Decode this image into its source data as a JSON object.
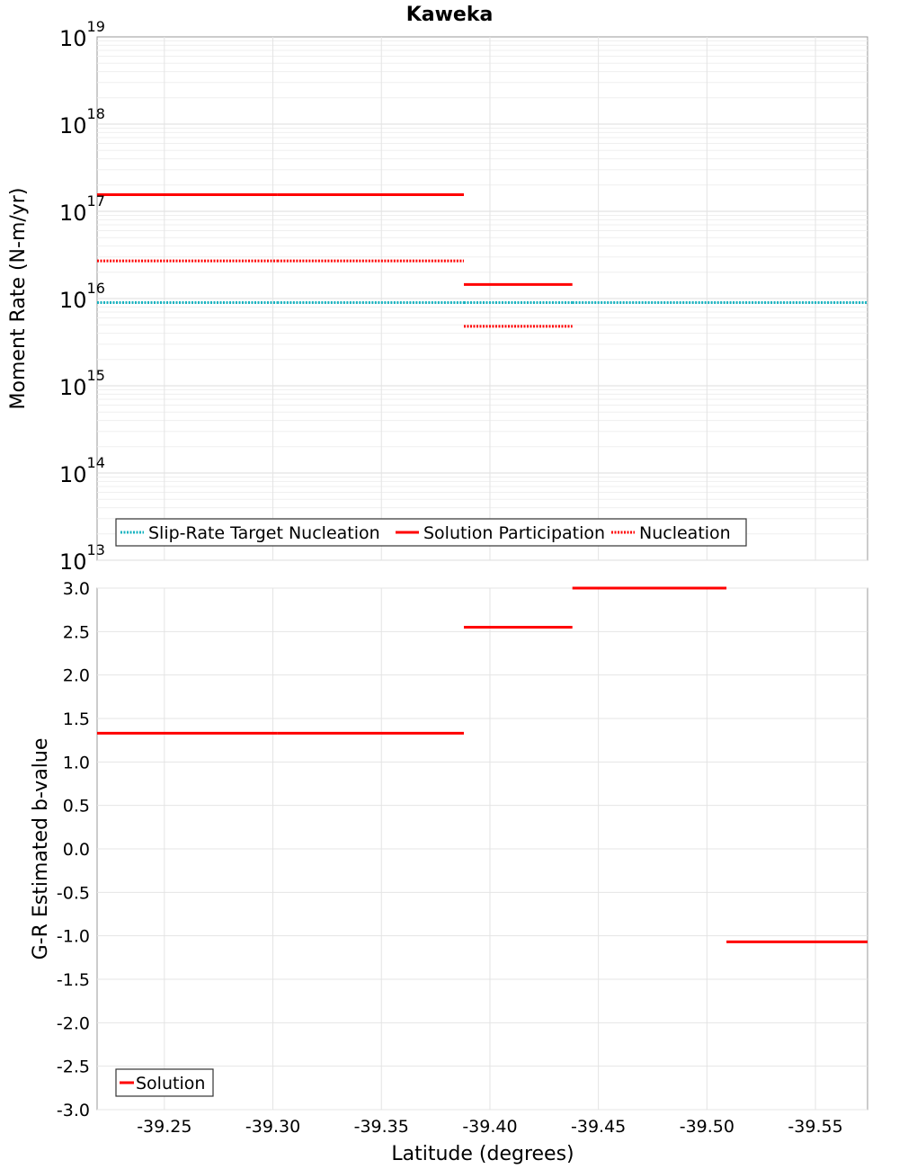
{
  "chart_data": [
    {
      "type": "line",
      "title": "Kaweka",
      "ylabel": "Moment Rate (N-m/yr)",
      "xlabel": "",
      "yscale": "log",
      "ylim": [
        10000000000000.0,
        1e+19
      ],
      "xlim": [
        -39.219,
        -39.574
      ],
      "y_ticks": [
        {
          "base": "10",
          "exp": "13",
          "value": 10000000000000.0
        },
        {
          "base": "10",
          "exp": "14",
          "value": 100000000000000.0
        },
        {
          "base": "10",
          "exp": "15",
          "value": 1000000000000000.0
        },
        {
          "base": "10",
          "exp": "16",
          "value": 1e+16
        },
        {
          "base": "10",
          "exp": "17",
          "value": 1e+17
        },
        {
          "base": "10",
          "exp": "18",
          "value": 1e+18
        },
        {
          "base": "10",
          "exp": "19",
          "value": 1e+19
        }
      ],
      "grid": true,
      "legend_position": "bottom-left",
      "series": [
        {
          "name": "Slip-Rate Target Nucleation",
          "style": "dotted",
          "color": "#17b3c0",
          "segments": [
            {
              "x0": -39.219,
              "x1": -39.302,
              "y": 9000000000000000.0
            },
            {
              "x0": -39.302,
              "x1": -39.388,
              "y": 9000000000000000.0
            },
            {
              "x0": -39.388,
              "x1": -39.438,
              "y": 9000000000000000.0
            },
            {
              "x0": -39.438,
              "x1": -39.509,
              "y": 9000000000000000.0
            },
            {
              "x0": -39.509,
              "x1": -39.574,
              "y": 9000000000000000.0
            }
          ]
        },
        {
          "name": "Solution Participation",
          "style": "solid",
          "color": "#ff0000",
          "segments": [
            {
              "x0": -39.219,
              "x1": -39.302,
              "y": 1.55e+17
            },
            {
              "x0": -39.302,
              "x1": -39.388,
              "y": 1.55e+17
            },
            {
              "x0": -39.388,
              "x1": -39.438,
              "y": 1.45e+16
            }
          ]
        },
        {
          "name": "Nucleation",
          "style": "dotted",
          "color": "#ff0000",
          "segments": [
            {
              "x0": -39.219,
              "x1": -39.302,
              "y": 2.7e+16
            },
            {
              "x0": -39.302,
              "x1": -39.388,
              "y": 2.7e+16
            },
            {
              "x0": -39.388,
              "x1": -39.438,
              "y": 4800000000000000.0
            }
          ]
        }
      ]
    },
    {
      "type": "line",
      "title": "",
      "xlabel": "Latitude (degrees)",
      "ylabel": "G-R Estimated b-value",
      "ylim": [
        -3.0,
        3.0
      ],
      "xlim": [
        -39.219,
        -39.574
      ],
      "x_ticks": [
        "-39.25",
        "-39.30",
        "-39.35",
        "-39.40",
        "-39.45",
        "-39.50",
        "-39.55"
      ],
      "y_ticks": [
        "3.0",
        "2.5",
        "2.0",
        "1.5",
        "1.0",
        "0.5",
        "0.0",
        "-0.5",
        "-1.0",
        "-1.5",
        "-2.0",
        "-2.5",
        "-3.0"
      ],
      "grid": true,
      "legend_position": "bottom-left",
      "series": [
        {
          "name": "Solution",
          "style": "solid",
          "color": "#ff0000",
          "segments": [
            {
              "x0": -39.219,
              "x1": -39.302,
              "y": 1.33
            },
            {
              "x0": -39.302,
              "x1": -39.388,
              "y": 1.33
            },
            {
              "x0": -39.388,
              "x1": -39.438,
              "y": 2.55
            },
            {
              "x0": -39.438,
              "x1": -39.509,
              "y": 3.0
            },
            {
              "x0": -39.509,
              "x1": -39.574,
              "y": -1.07
            }
          ]
        }
      ]
    }
  ]
}
